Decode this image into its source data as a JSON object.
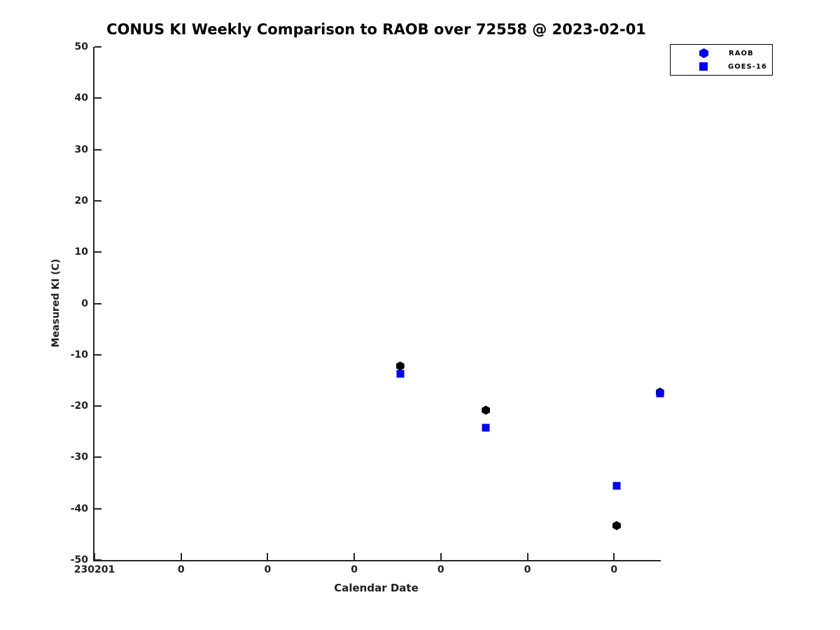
{
  "chart_data": {
    "type": "scatter",
    "title": "CONUS KI Weekly Comparison to RAOB over 72558 @ 2023-02-01",
    "xlabel": "Calendar Date",
    "ylabel": "Measured KI (C)",
    "ylim": [
      -50,
      50
    ],
    "yticks": [
      50,
      40,
      30,
      20,
      10,
      0,
      -10,
      -20,
      -30,
      -40,
      -50
    ],
    "xlim_days": [
      0,
      6.54
    ],
    "xticks": [
      {
        "day": 0,
        "label": "230201"
      },
      {
        "day": 1,
        "label": "0"
      },
      {
        "day": 2,
        "label": "0"
      },
      {
        "day": 3,
        "label": "0"
      },
      {
        "day": 4,
        "label": "0"
      },
      {
        "day": 5,
        "label": "0"
      },
      {
        "day": 6,
        "label": "0"
      }
    ],
    "grid": false,
    "legend_position": "top-right-outside-plot-top",
    "series": [
      {
        "name": "RAOB",
        "marker": "hexagon",
        "color": "#000000",
        "legend_marker_color": "#0000EE",
        "points": [
          {
            "x_day": 3.53,
            "y": -12.2
          },
          {
            "x_day": 4.52,
            "y": -20.8
          },
          {
            "x_day": 6.03,
            "y": -43.3
          },
          {
            "x_day": 6.53,
            "y": -17.3
          }
        ]
      },
      {
        "name": "GOES-16",
        "marker": "square",
        "color": "#0000EE",
        "legend_marker_color": "#0000EE",
        "points": [
          {
            "x_day": 3.53,
            "y": -13.7
          },
          {
            "x_day": 4.52,
            "y": -24.2
          },
          {
            "x_day": 6.03,
            "y": -35.5
          },
          {
            "x_day": 6.53,
            "y": -17.5
          }
        ]
      }
    ],
    "colors": {
      "axis": "#262626",
      "text": "#1f1f1f",
      "blue": "#0000EE",
      "black": "#000000",
      "background": "#FFFFFF"
    }
  }
}
